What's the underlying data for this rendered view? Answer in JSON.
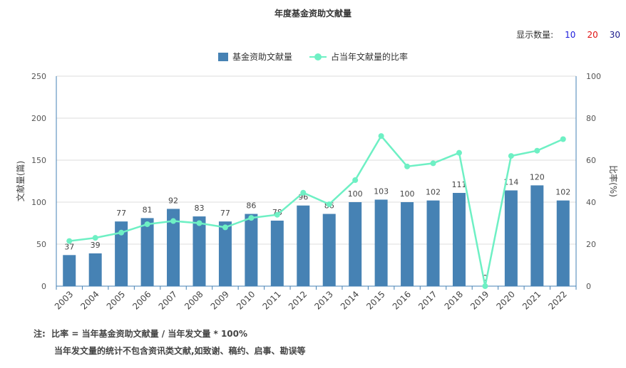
{
  "title": "年度基金资助文献量",
  "display_count": {
    "label": "显示数量:",
    "options": [
      {
        "label": "10",
        "color": "#1a1adc"
      },
      {
        "label": "20",
        "color": "#e01010"
      },
      {
        "label": "30",
        "color": "#1a1a8c"
      }
    ]
  },
  "notes": {
    "prefix": "注:",
    "line1": "比率 = 当年基金资助文献量 / 当年发文量 * 100%",
    "line2": "当年发文量的统计不包含资讯类文献,如致谢、稿约、启事、勘误等"
  },
  "chart_data": {
    "type": "bar",
    "title": "年度基金资助文献量",
    "categories": [
      "2003",
      "2004",
      "2005",
      "2006",
      "2007",
      "2008",
      "2009",
      "2010",
      "2011",
      "2012",
      "2013",
      "2014",
      "2015",
      "2016",
      "2017",
      "2018",
      "2019",
      "2020",
      "2021",
      "2022"
    ],
    "series": [
      {
        "name": "基金资助文献量",
        "type": "bar",
        "axis": "left",
        "color": "#4682b4",
        "values": [
          37,
          39,
          77,
          81,
          92,
          83,
          77,
          86,
          78,
          96,
          86,
          100,
          103,
          100,
          102,
          111,
          0,
          114,
          120,
          102
        ]
      },
      {
        "name": "占当年文献量的比率",
        "type": "line",
        "axis": "right",
        "color": "#6ef0c4",
        "values": [
          21.5,
          23,
          25.5,
          29.5,
          31,
          30,
          28,
          32.5,
          34,
          44.5,
          39,
          50.5,
          71.5,
          57,
          58.5,
          63.5,
          0,
          62,
          64.5,
          70
        ]
      }
    ],
    "y_left": {
      "label": "文献量(篇)",
      "min": 0,
      "max": 250,
      "ticks": [
        0,
        50,
        100,
        150,
        200,
        250
      ]
    },
    "y_right": {
      "label": "比率(%)",
      "min": 0,
      "max": 100,
      "ticks": [
        0,
        20,
        40,
        60,
        80,
        100
      ]
    },
    "grid": true,
    "legend": "top-center"
  }
}
